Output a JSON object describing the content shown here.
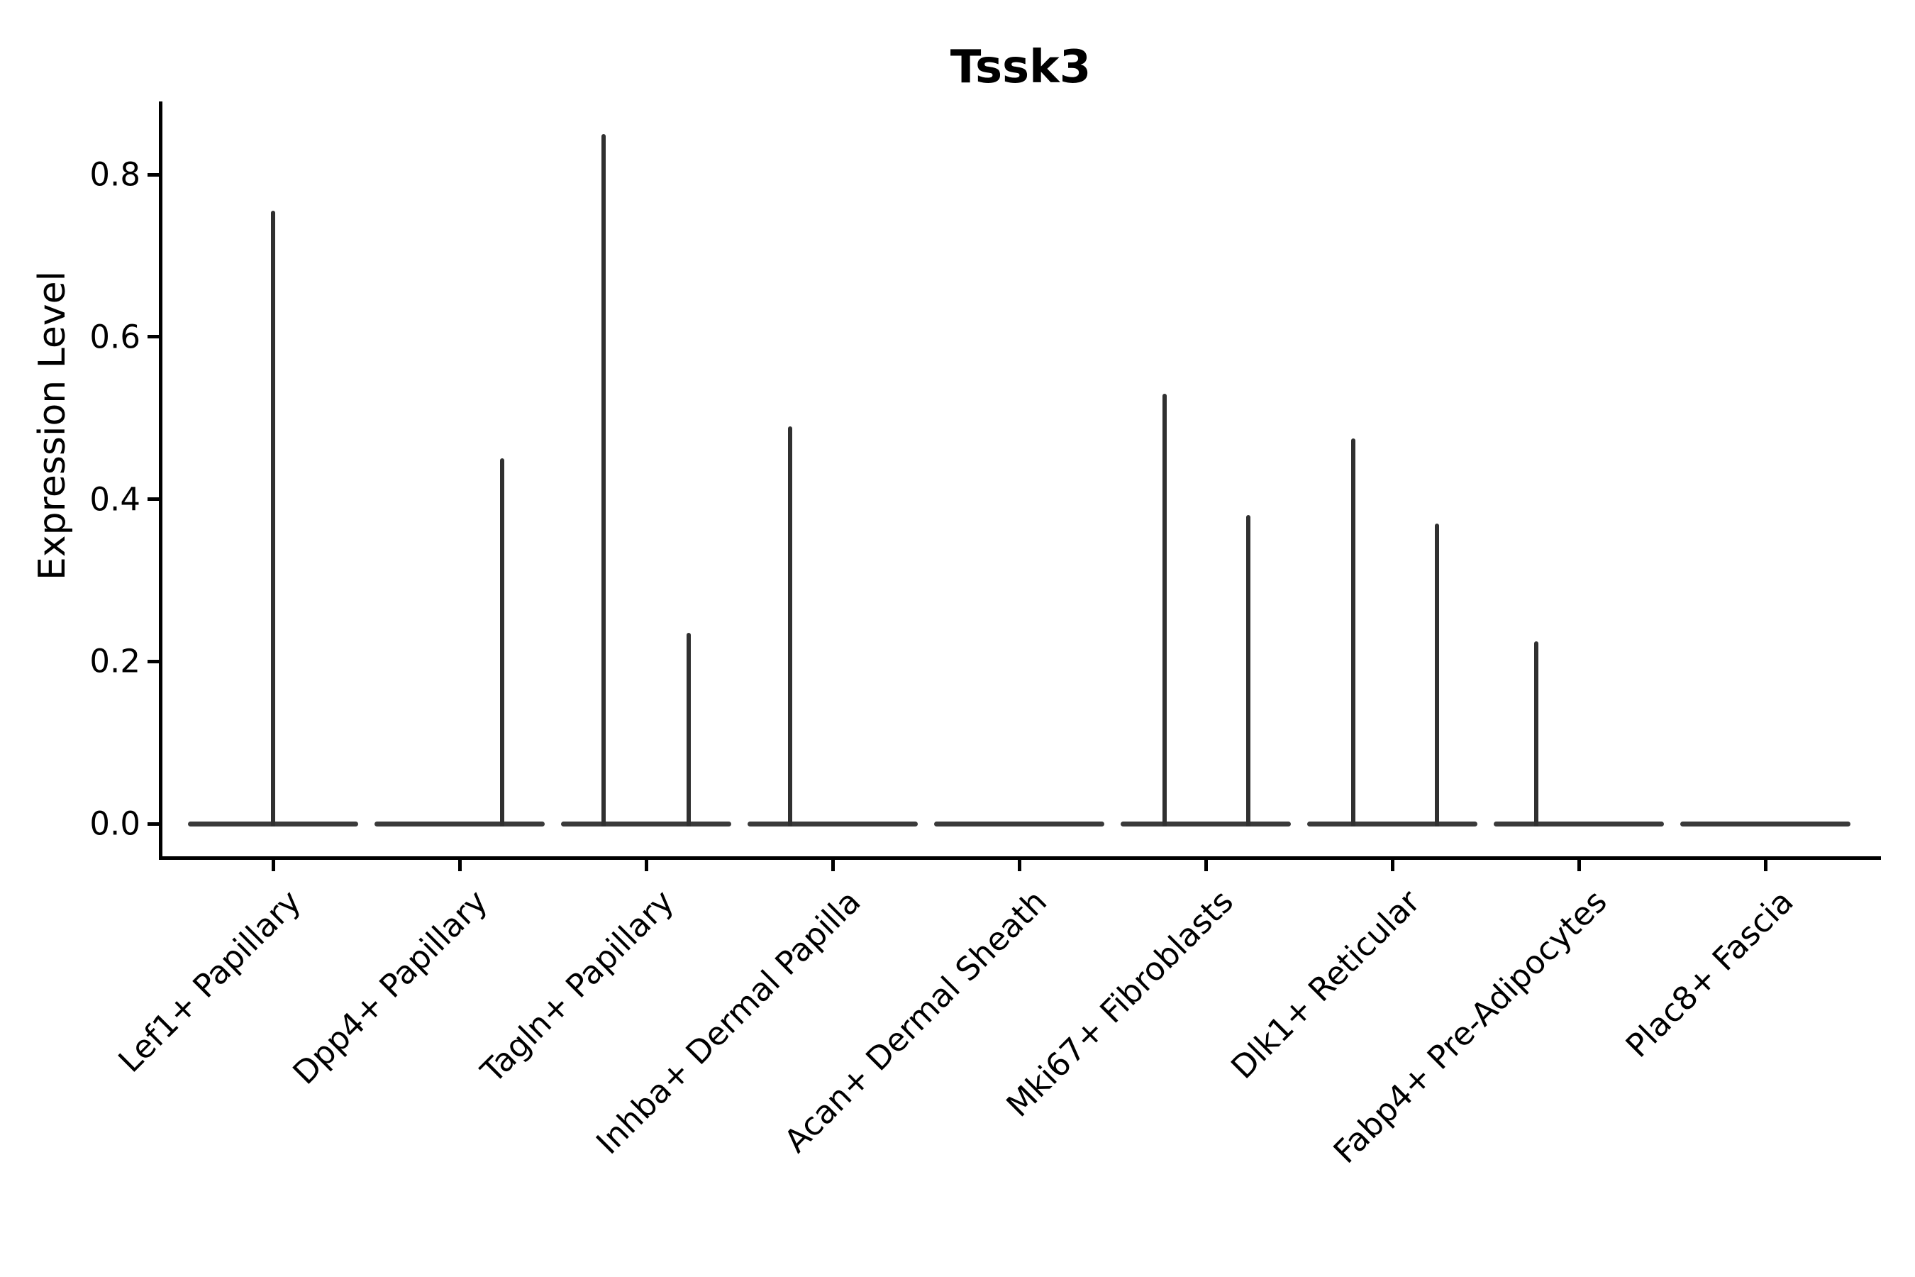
{
  "figure": {
    "title": "Tssk3",
    "ylabel": "Expression Level",
    "colors": {
      "background": "#ffffff",
      "axis": "#000000",
      "text": "#000000",
      "violin_base": "#3a3a3a",
      "violin_spike": "#303030"
    }
  },
  "chart_data": {
    "type": "violin",
    "title": "Tssk3",
    "xlabel": "",
    "ylabel": "Expression Level",
    "ylim": [
      -0.04,
      0.89
    ],
    "yticks": [
      {
        "value": 0.0,
        "label": "0.0"
      },
      {
        "value": 0.2,
        "label": "0.2"
      },
      {
        "value": 0.4,
        "label": "0.4"
      },
      {
        "value": 0.6,
        "label": "0.6"
      },
      {
        "value": 0.8,
        "label": "0.8"
      }
    ],
    "grid": false,
    "legend": null,
    "x_tick_rotation_deg": 45,
    "categories": [
      "Lef1+ Papillary",
      "Dpp4+ Papillary",
      "Tagln+ Papillary",
      "Inhba+ Dermal Papilla",
      "Acan+ Dermal Sheath",
      "Mki67+ Fibroblasts",
      "Dlk1+ Reticular",
      "Fabp4+ Pre-Adipocytes",
      "Plac8+ Fascia"
    ],
    "violins": [
      {
        "category": "Lef1+ Papillary",
        "baseline_value": 0.0,
        "spikes": [
          {
            "offset": 0.0,
            "max": 0.755
          }
        ]
      },
      {
        "category": "Dpp4+ Papillary",
        "baseline_value": 0.0,
        "spikes": [
          {
            "offset": 0.228,
            "max": 0.45
          }
        ]
      },
      {
        "category": "Tagln+ Papillary",
        "baseline_value": 0.0,
        "spikes": [
          {
            "offset": -0.228,
            "max": 0.85
          },
          {
            "offset": 0.228,
            "max": 0.235
          }
        ]
      },
      {
        "category": "Inhba+ Dermal Papilla",
        "baseline_value": 0.0,
        "spikes": [
          {
            "offset": -0.228,
            "max": 0.49
          }
        ]
      },
      {
        "category": "Acan+ Dermal Sheath",
        "baseline_value": 0.0,
        "spikes": []
      },
      {
        "category": "Mki67+ Fibroblasts",
        "baseline_value": 0.0,
        "spikes": [
          {
            "offset": -0.222,
            "max": 0.53
          },
          {
            "offset": 0.228,
            "max": 0.38
          }
        ]
      },
      {
        "category": "Dlk1+ Reticular",
        "baseline_value": 0.0,
        "spikes": [
          {
            "offset": -0.21,
            "max": 0.475
          },
          {
            "offset": 0.24,
            "max": 0.37
          }
        ]
      },
      {
        "category": "Fabp4+ Pre-Adipocytes",
        "baseline_value": 0.0,
        "spikes": [
          {
            "offset": -0.228,
            "max": 0.225
          }
        ]
      },
      {
        "category": "Plac8+ Fascia",
        "baseline_value": 0.0,
        "spikes": []
      }
    ]
  }
}
